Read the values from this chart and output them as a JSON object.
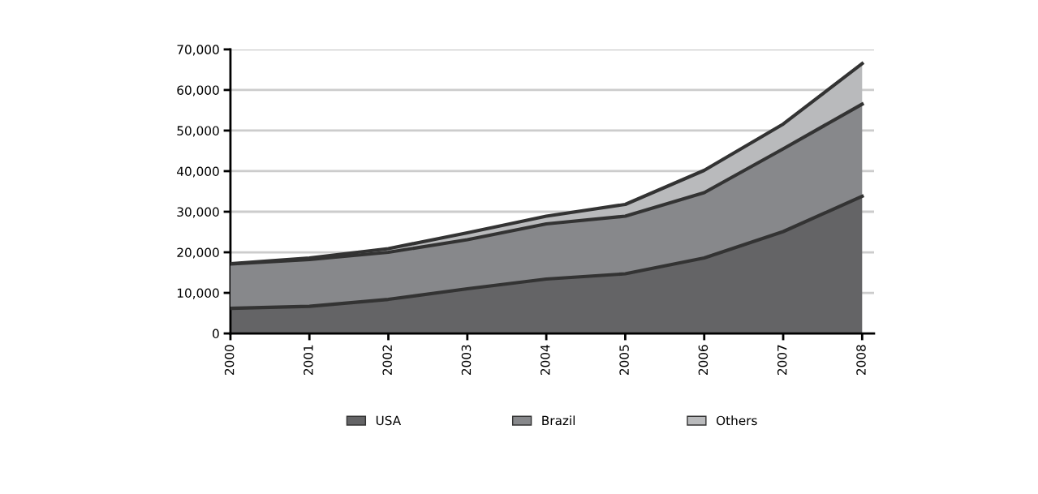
{
  "chart_data": {
    "type": "area",
    "stacked": true,
    "categories": [
      "2000",
      "2001",
      "2002",
      "2003",
      "2004",
      "2005",
      "2006",
      "2007",
      "2008"
    ],
    "series": [
      {
        "name": "USA",
        "color": "#646466",
        "values": [
          6200,
          6700,
          8400,
          11000,
          13400,
          14700,
          18600,
          25100,
          33800
        ]
      },
      {
        "name": "Brazil",
        "color": "#87888b",
        "values": [
          10900,
          11500,
          11600,
          12100,
          13600,
          14200,
          16100,
          20400,
          22700
        ]
      },
      {
        "name": "Others",
        "color": "#b9babc",
        "values": [
          100,
          400,
          900,
          1700,
          1900,
          2900,
          5500,
          6100,
          10000
        ]
      }
    ],
    "ylim": [
      0,
      70000
    ],
    "yticks": [
      {
        "value": 0,
        "label": "0"
      },
      {
        "value": 10000,
        "label": "10,000"
      },
      {
        "value": 20000,
        "label": "20,000"
      },
      {
        "value": 30000,
        "label": "30,000"
      },
      {
        "value": 40000,
        "label": "40,000"
      },
      {
        "value": 50000,
        "label": "50,000"
      },
      {
        "value": 60000,
        "label": "60,000"
      },
      {
        "value": 70000,
        "label": "70,000"
      }
    ],
    "grid": "y",
    "legend": "bottom"
  }
}
